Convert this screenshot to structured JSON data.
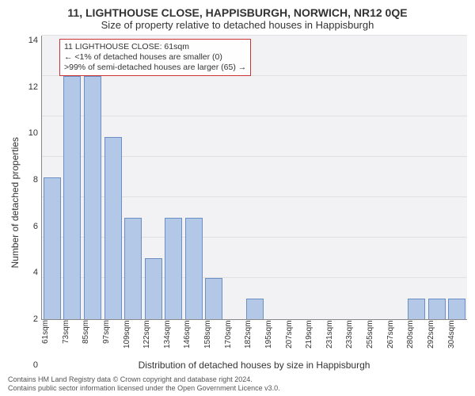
{
  "title_main": "11, LIGHTHOUSE CLOSE, HAPPISBURGH, NORWICH, NR12 0QE",
  "title_sub": "Size of property relative to detached houses in Happisburgh",
  "ylabel": "Number of detached properties",
  "xlabel": "Distribution of detached houses by size in Happisburgh",
  "footer_line1": "Contains HM Land Registry data © Crown copyright and database right 2024.",
  "footer_line2": "Contains public sector information licensed under the Open Government Licence v3.0.",
  "callout": {
    "line1": "11 LIGHTHOUSE CLOSE: 61sqm",
    "line2": "← <1% of detached houses are smaller (0)",
    "line3": ">99% of semi-detached houses are larger (65) →",
    "border_color": "#cc3333"
  },
  "chart": {
    "type": "bar",
    "ymax": 14,
    "ytick_step": 2,
    "yticks": [
      0,
      2,
      4,
      6,
      8,
      10,
      12,
      14
    ],
    "grid_color": "#e0e0e0",
    "background_color": "#f2f2f5",
    "bar_fill": "#b3c7e6",
    "bar_stroke": "#6b8ec4",
    "categories": [
      "61sqm",
      "73sqm",
      "85sqm",
      "97sqm",
      "109sqm",
      "122sqm",
      "134sqm",
      "146sqm",
      "158sqm",
      "170sqm",
      "182sqm",
      "195sqm",
      "207sqm",
      "219sqm",
      "231sqm",
      "233sqm",
      "255sqm",
      "267sqm",
      "280sqm",
      "292sqm",
      "304sqm"
    ],
    "values": [
      7,
      12,
      12,
      9,
      5,
      3,
      5,
      5,
      2,
      0,
      1,
      0,
      0,
      0,
      0,
      0,
      0,
      0,
      1,
      1,
      1
    ]
  }
}
